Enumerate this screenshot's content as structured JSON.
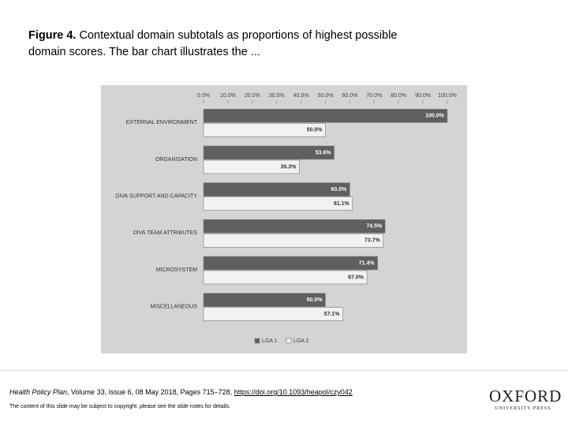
{
  "figure_label": "Figure 4.",
  "caption": "Contextual domain subtotals as proportions of highest possible domain scores. The bar chart illustrates the ...",
  "chart_data": {
    "type": "bar",
    "orientation": "horizontal",
    "categories": [
      "EXTERNAL ENVIRONMENT",
      "ORGANISATION",
      "DIVA SUPPORT AND CAPACITY",
      "DIVA TEAM ATTRIBUTES",
      "MICROSYSTEM",
      "MISCELLANEOUS"
    ],
    "series": [
      {
        "name": "LGA 1",
        "color": "#5f5f5f",
        "values": [
          100.0,
          53.6,
          60.0,
          74.5,
          71.4,
          50.0
        ],
        "value_labels": [
          "100.0%",
          "53.6%",
          "60.0%",
          "74.5%",
          "71.4%",
          "50.0%"
        ]
      },
      {
        "name": "LGA 2",
        "color": "#f2f2f2",
        "values": [
          50.0,
          39.3,
          61.1,
          73.7,
          67.0,
          57.1
        ],
        "value_labels": [
          "50.0%",
          "39.3%",
          "61.1%",
          "73.7%",
          "67.0%",
          "57.1%"
        ]
      }
    ],
    "xlim": [
      0,
      100
    ],
    "xticks": [
      {
        "value": 0,
        "label": "0.0%"
      },
      {
        "value": 10,
        "label": "10.0%"
      },
      {
        "value": 20,
        "label": "20.0%"
      },
      {
        "value": 30,
        "label": "30.0%"
      },
      {
        "value": 40,
        "label": "40.0%"
      },
      {
        "value": 50,
        "label": "50.0%"
      },
      {
        "value": 60,
        "label": "60.0%"
      },
      {
        "value": 70,
        "label": "70.0%"
      },
      {
        "value": 80,
        "label": "80.0%"
      },
      {
        "value": 90,
        "label": "90.0%"
      },
      {
        "value": 100,
        "label": "100.0%"
      }
    ],
    "legend": "bottom"
  },
  "footer": {
    "journal": "Health Policy Plan",
    "citation": ", Volume 33, Issue 6, 08 May 2018, Pages 715–728, ",
    "doi": "https://doi.org/10.1093/heapol/czy042",
    "copyright": "The content of this slide may be subject to copyright: please see the slide notes for details.",
    "logo": "OXFORD",
    "logo_sub": "UNIVERSITY PRESS"
  }
}
